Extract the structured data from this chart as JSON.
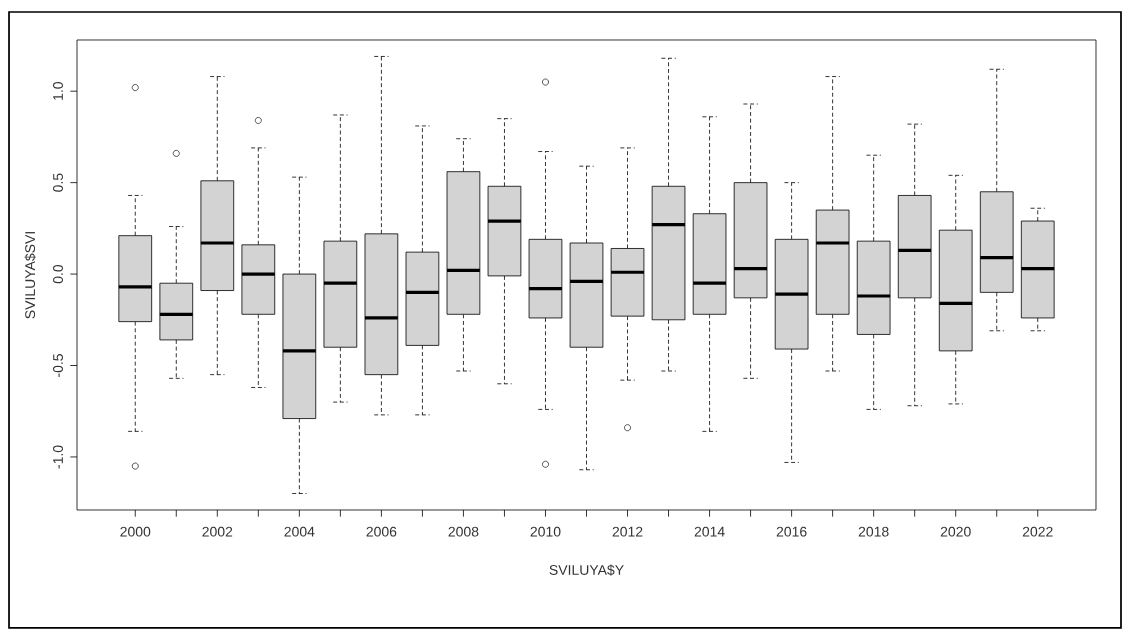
{
  "chart_data": {
    "type": "box",
    "xlabel": "SVILUYA$Y",
    "ylabel": "SVILUYA$SVI",
    "categories": [
      "2000",
      null,
      "2002",
      null,
      "2004",
      null,
      "2006",
      null,
      "2008",
      null,
      "2010",
      null,
      "2012",
      null,
      "2014",
      null,
      "2016",
      null,
      "2018",
      null,
      "2020",
      null,
      "2022"
    ],
    "color": "#d3d3d3",
    "ylim": [
      -1.29,
      1.28
    ],
    "yticks": [
      {
        "value": -1,
        "label": "-1.0"
      },
      {
        "value": -0.5,
        "label": "-0.5"
      },
      {
        "value": 0,
        "label": "0.0"
      },
      {
        "value": 0.5,
        "label": "0.5"
      },
      {
        "value": 1,
        "label": "1.0"
      }
    ],
    "boxes": [
      {
        "low": -0.86,
        "q1": -0.26,
        "median": -0.07,
        "q3": 0.21,
        "high": 0.43,
        "outliers": [
          1.02,
          -1.05
        ]
      },
      {
        "low": -0.57,
        "q1": -0.36,
        "median": -0.22,
        "q3": -0.05,
        "high": 0.26,
        "outliers": [
          0.66
        ]
      },
      {
        "low": -0.55,
        "q1": -0.09,
        "median": 0.17,
        "q3": 0.51,
        "high": 1.08
      },
      {
        "low": -0.62,
        "q1": -0.22,
        "median": 0.0,
        "q3": 0.16,
        "high": 0.69,
        "outliers": [
          0.84
        ]
      },
      {
        "low": -1.2,
        "q1": -0.79,
        "median": -0.42,
        "q3": 0.0,
        "high": 0.53
      },
      {
        "low": -0.7,
        "q1": -0.4,
        "median": -0.05,
        "q3": 0.18,
        "high": 0.87
      },
      {
        "low": -0.77,
        "q1": -0.55,
        "median": -0.24,
        "q3": 0.22,
        "high": 1.19
      },
      {
        "low": -0.77,
        "q1": -0.39,
        "median": -0.1,
        "q3": 0.12,
        "high": 0.81
      },
      {
        "low": -0.53,
        "q1": -0.22,
        "median": 0.02,
        "q3": 0.56,
        "high": 0.74
      },
      {
        "low": -0.6,
        "q1": -0.01,
        "median": 0.29,
        "q3": 0.48,
        "high": 0.85
      },
      {
        "low": -0.74,
        "q1": -0.24,
        "median": -0.08,
        "q3": 0.19,
        "high": 0.67,
        "outliers": [
          1.05,
          -1.04
        ]
      },
      {
        "low": -1.07,
        "q1": -0.4,
        "median": -0.04,
        "q3": 0.17,
        "high": 0.59
      },
      {
        "low": -0.58,
        "q1": -0.23,
        "median": 0.01,
        "q3": 0.14,
        "high": 0.69,
        "outliers": [
          -0.84
        ]
      },
      {
        "low": -0.53,
        "q1": -0.25,
        "median": 0.27,
        "q3": 0.48,
        "high": 1.18
      },
      {
        "low": -0.86,
        "q1": -0.22,
        "median": -0.05,
        "q3": 0.33,
        "high": 0.86
      },
      {
        "low": -0.57,
        "q1": -0.13,
        "median": 0.03,
        "q3": 0.5,
        "high": 0.93
      },
      {
        "low": -1.03,
        "q1": -0.41,
        "median": -0.11,
        "q3": 0.19,
        "high": 0.5
      },
      {
        "low": -0.53,
        "q1": -0.22,
        "median": 0.17,
        "q3": 0.35,
        "high": 1.08
      },
      {
        "low": -0.74,
        "q1": -0.33,
        "median": -0.12,
        "q3": 0.18,
        "high": 0.65
      },
      {
        "low": -0.72,
        "q1": -0.13,
        "median": 0.13,
        "q3": 0.43,
        "high": 0.82
      },
      {
        "low": -0.71,
        "q1": -0.42,
        "median": -0.16,
        "q3": 0.24,
        "high": 0.54
      },
      {
        "low": -0.31,
        "q1": -0.1,
        "median": 0.09,
        "q3": 0.45,
        "high": 1.12
      },
      {
        "low": -0.31,
        "q1": -0.24,
        "median": 0.03,
        "q3": 0.29,
        "high": 0.36
      }
    ]
  }
}
